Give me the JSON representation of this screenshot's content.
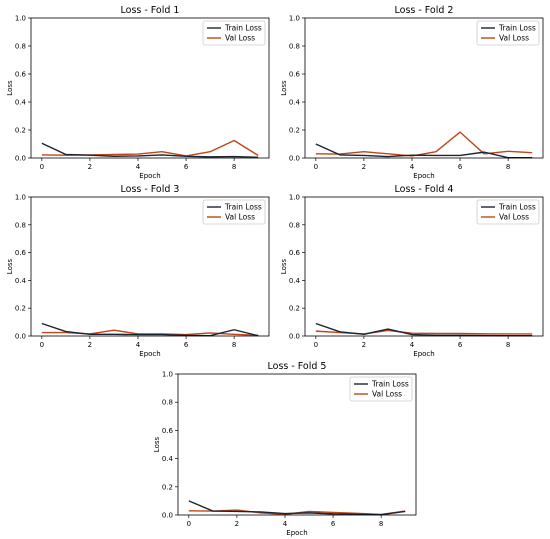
{
  "colors": {
    "train": "#1a2433",
    "val": "#c0451a"
  },
  "chart_data": [
    {
      "type": "line",
      "title": "Loss - Fold 1",
      "xlabel": "Epoch",
      "ylabel": "Loss",
      "xlim": [
        -0.45,
        9.45
      ],
      "ylim": [
        0,
        1
      ],
      "xticks": [
        0,
        2,
        4,
        6,
        8
      ],
      "yticks": [
        0.0,
        0.2,
        0.4,
        0.6,
        0.8,
        1.0
      ],
      "legend": "top-right",
      "x": [
        0,
        1,
        2,
        3,
        4,
        5,
        6,
        7,
        8,
        9
      ],
      "series": [
        {
          "name": "Train Loss",
          "values": [
            0.105,
            0.025,
            0.02,
            0.012,
            0.015,
            0.022,
            0.012,
            0.008,
            0.01,
            0.005
          ]
        },
        {
          "name": "Val Loss",
          "values": [
            0.022,
            0.02,
            0.022,
            0.025,
            0.028,
            0.045,
            0.015,
            0.045,
            0.125,
            0.018
          ]
        }
      ]
    },
    {
      "type": "line",
      "title": "Loss - Fold 2",
      "xlabel": "Epoch",
      "ylabel": "Loss",
      "xlim": [
        -0.45,
        9.45
      ],
      "ylim": [
        0,
        1
      ],
      "xticks": [
        0,
        2,
        4,
        6,
        8
      ],
      "yticks": [
        0.0,
        0.2,
        0.4,
        0.6,
        0.8,
        1.0
      ],
      "legend": "top-right",
      "x": [
        0,
        1,
        2,
        3,
        4,
        5,
        6,
        7,
        8,
        9
      ],
      "series": [
        {
          "name": "Train Loss",
          "values": [
            0.1,
            0.022,
            0.018,
            0.01,
            0.02,
            0.018,
            0.018,
            0.042,
            0.002,
            0.002
          ]
        },
        {
          "name": "Val Loss",
          "values": [
            0.03,
            0.028,
            0.045,
            0.03,
            0.015,
            0.045,
            0.185,
            0.03,
            0.048,
            0.038
          ]
        }
      ]
    },
    {
      "type": "line",
      "title": "Loss - Fold 3",
      "xlabel": "Epoch",
      "ylabel": "Loss",
      "xlim": [
        -0.45,
        9.45
      ],
      "ylim": [
        0,
        1
      ],
      "xticks": [
        0,
        2,
        4,
        6,
        8
      ],
      "yticks": [
        0.0,
        0.2,
        0.4,
        0.6,
        0.8,
        1.0
      ],
      "legend": "top-right",
      "x": [
        0,
        1,
        2,
        3,
        4,
        5,
        6,
        7,
        8,
        9
      ],
      "series": [
        {
          "name": "Train Loss",
          "values": [
            0.09,
            0.032,
            0.012,
            0.012,
            0.01,
            0.01,
            0.005,
            0.002,
            0.045,
            0.002
          ]
        },
        {
          "name": "Val Loss",
          "values": [
            0.025,
            0.025,
            0.015,
            0.042,
            0.015,
            0.015,
            0.01,
            0.022,
            0.012,
            0.005
          ]
        }
      ]
    },
    {
      "type": "line",
      "title": "Loss - Fold 4",
      "xlabel": "Epoch",
      "ylabel": "Loss",
      "xlim": [
        -0.45,
        9.45
      ],
      "ylim": [
        0,
        1
      ],
      "xticks": [
        0,
        2,
        4,
        6,
        8
      ],
      "yticks": [
        0.0,
        0.2,
        0.4,
        0.6,
        0.8,
        1.0
      ],
      "legend": "top-right",
      "x": [
        0,
        1,
        2,
        3,
        4,
        5,
        6,
        7,
        8,
        9
      ],
      "series": [
        {
          "name": "Train Loss",
          "values": [
            0.09,
            0.03,
            0.012,
            0.05,
            0.01,
            0.005,
            0.005,
            0.003,
            0.002,
            0.002
          ]
        },
        {
          "name": "Val Loss",
          "values": [
            0.035,
            0.025,
            0.015,
            0.04,
            0.02,
            0.018,
            0.018,
            0.016,
            0.015,
            0.015
          ]
        }
      ]
    },
    {
      "type": "line",
      "title": "Loss - Fold 5",
      "xlabel": "Epoch",
      "ylabel": "Loss",
      "xlim": [
        -0.45,
        9.45
      ],
      "ylim": [
        0,
        1
      ],
      "xticks": [
        0,
        2,
        4,
        6,
        8
      ],
      "yticks": [
        0.0,
        0.2,
        0.4,
        0.6,
        0.8,
        1.0
      ],
      "legend": "top-right",
      "x": [
        0,
        1,
        2,
        3,
        4,
        5,
        6,
        7,
        8,
        9
      ],
      "series": [
        {
          "name": "Train Loss",
          "values": [
            0.1,
            0.028,
            0.025,
            0.022,
            0.01,
            0.015,
            0.008,
            0.005,
            0.002,
            0.025
          ]
        },
        {
          "name": "Val Loss",
          "values": [
            0.03,
            0.028,
            0.035,
            0.015,
            0.005,
            0.025,
            0.018,
            0.012,
            0.004,
            0.028
          ]
        }
      ]
    }
  ]
}
